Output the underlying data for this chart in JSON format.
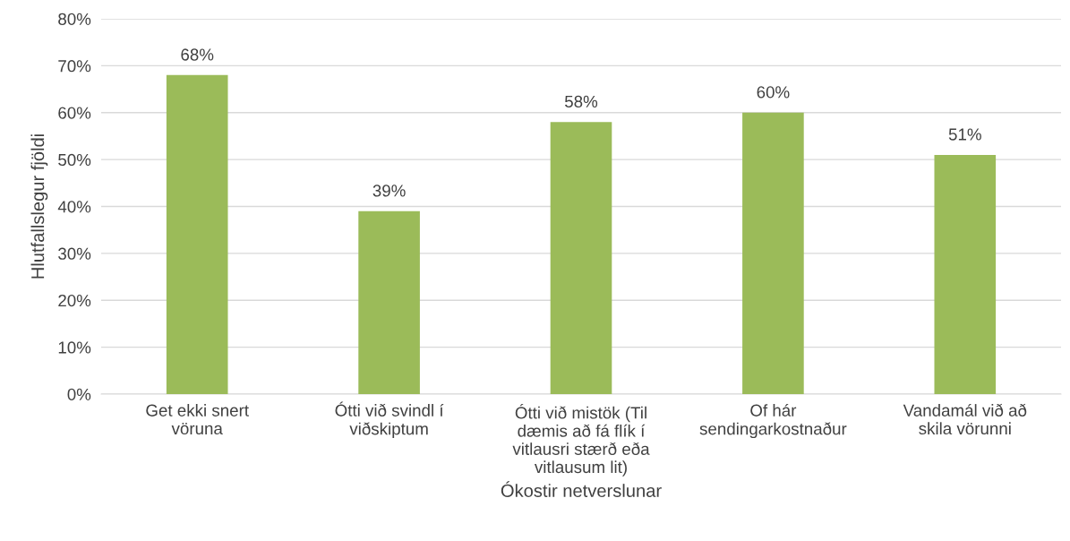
{
  "chart_data": {
    "type": "bar",
    "xlabel": "Ókostir netverslunar",
    "ylabel": "Hlutfallslegur fjöldi",
    "categories": [
      "Get ekki snert\nvöruna",
      "Ótti við svindl í\nviðskiptum",
      "Ótti við mistök (Til\ndæmis að fá flík í\nvitlausri stærð eða\nvitlausum lit)",
      "Of hár\nsendingarkostnaður",
      "Vandamál við að\nskila vörunni"
    ],
    "values": [
      68,
      39,
      58,
      60,
      51
    ],
    "value_labels": [
      "68%",
      "39%",
      "58%",
      "60%",
      "51%"
    ],
    "color": "#9bbb59",
    "ylim": [
      0,
      80
    ],
    "yticks": [
      {
        "value": 0,
        "label": "0%"
      },
      {
        "value": 10,
        "label": "10%"
      },
      {
        "value": 20,
        "label": "20%"
      },
      {
        "value": 30,
        "label": "30%"
      },
      {
        "value": 40,
        "label": "40%"
      },
      {
        "value": 50,
        "label": "50%"
      },
      {
        "value": 60,
        "label": "60%"
      },
      {
        "value": 70,
        "label": "70%"
      },
      {
        "value": 80,
        "label": "80%"
      }
    ],
    "grid": "y",
    "legend": false
  }
}
